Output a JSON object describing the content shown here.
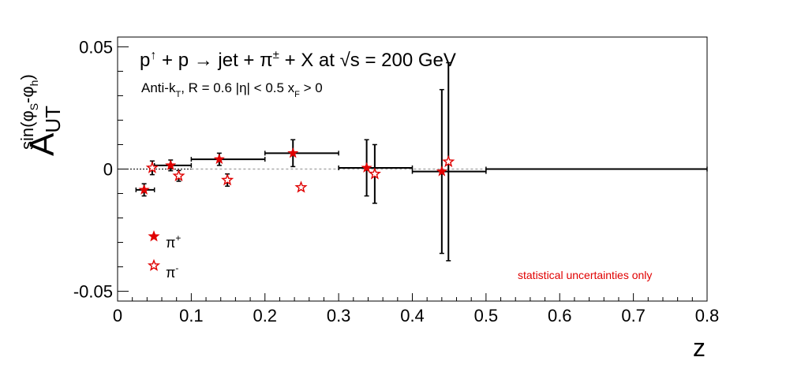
{
  "chart_data": {
    "type": "scatter",
    "title": "p↑ + p → jet + π± + X at √s = 200 GeV",
    "title_parts": {
      "p": "p",
      "arrow_up": "↑",
      "plus_p": " + p ",
      "arrow": "→",
      "jet": " jet + π",
      "pm": "±",
      "plus_x": " + X at ",
      "sqrt": "√",
      "s": "s = 200 GeV"
    },
    "subtitle": "Anti-k_T, R = 0.6   |η| < 0.5   x_F > 0",
    "subtitle_parts": {
      "anti": "Anti-k",
      "t_sub": "T",
      "rest": ", R = 0.6   |η| < 0.5   x",
      "f_sub": "F",
      "end": " > 0"
    },
    "xlabel": "z",
    "ylabel": "A_UT^sin(φS-φh)",
    "ylabel_parts": {
      "A": "A",
      "UT": "UT",
      "sin": "sin(φ",
      "S": "S",
      "mid": "-φ",
      "h": "h",
      "close": ")"
    },
    "xlim": [
      0,
      0.8
    ],
    "ylim": [
      -0.054,
      0.054
    ],
    "x_ticks": [
      0,
      0.1,
      0.2,
      0.3,
      0.4,
      0.5,
      0.6,
      0.7,
      0.8
    ],
    "x_tick_labels": [
      "0",
      "0.1",
      "0.2",
      "0.3",
      "0.4",
      "0.5",
      "0.6",
      "0.7",
      "0.8"
    ],
    "y_ticks": [
      -0.05,
      0,
      0.05
    ],
    "y_tick_labels": [
      "-0.05",
      "0",
      "0.05"
    ],
    "zero_line": true,
    "grid": false,
    "legend_placement": "bottom-left",
    "annotation": "statistical uncertainties only",
    "series": [
      {
        "name": "π⁺",
        "legend_sup": "+",
        "marker": "filled-star",
        "color": "#e00000",
        "points": [
          {
            "x": 0.036,
            "y": -0.0085,
            "ex_low": 0.011,
            "ex_high": 0.014,
            "ey": 0.0025
          },
          {
            "x": 0.072,
            "y": 0.0015,
            "ex_low": 0.022,
            "ex_high": 0.028,
            "ey": 0.0022
          },
          {
            "x": 0.138,
            "y": 0.004,
            "ex_low": 0.038,
            "ex_high": 0.062,
            "ey": 0.0025
          },
          {
            "x": 0.238,
            "y": 0.0065,
            "ex_low": 0.038,
            "ex_high": 0.062,
            "ey": 0.0055
          },
          {
            "x": 0.338,
            "y": 0.0005,
            "ex_low": 0.038,
            "ex_high": 0.062,
            "ey": 0.0115
          },
          {
            "x": 0.44,
            "y": -0.001,
            "ex_low": 0.04,
            "ex_high": 0.06,
            "ey": 0.0335
          }
        ]
      },
      {
        "name": "π⁻",
        "legend_sup": "-",
        "marker": "open-star",
        "color": "#e00000",
        "points": [
          {
            "x": 0.047,
            "y": 0.0005,
            "ex_low": 0.0,
            "ex_high": 0.0,
            "ey": 0.0028
          },
          {
            "x": 0.083,
            "y": -0.0028,
            "ex_low": 0.0,
            "ex_high": 0.0,
            "ey": 0.0022
          },
          {
            "x": 0.149,
            "y": -0.0045,
            "ex_low": 0.0,
            "ex_high": 0.0,
            "ey": 0.0025
          },
          {
            "x": 0.249,
            "y": -0.0075,
            "ex_low": 0.0,
            "ex_high": 0.0,
            "ey": 0.0
          },
          {
            "x": 0.349,
            "y": -0.002,
            "ex_low": 0.0,
            "ex_high": 0.0,
            "ey": 0.012
          },
          {
            "x": 0.449,
            "y": 0.003,
            "ex_low": 0.0,
            "ex_high": 0.0,
            "ey": 0.0405
          }
        ]
      }
    ],
    "extra_bin": {
      "x": 0.65,
      "y": 0.0,
      "ex_low": 0.15,
      "ex_high": 0.15,
      "ey": 0.0
    }
  }
}
